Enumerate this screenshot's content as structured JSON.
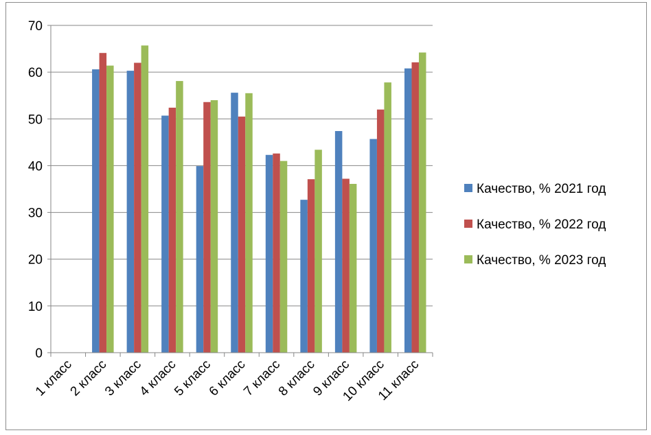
{
  "chart_data": {
    "type": "bar",
    "title": "",
    "xlabel": "",
    "ylabel": "",
    "ylim": [
      0,
      70
    ],
    "yticks": [
      "0",
      "10",
      "20",
      "30",
      "40",
      "50",
      "60",
      "70"
    ],
    "grid": "horizontal",
    "legend_position": "right",
    "categories": [
      "1 класс",
      "2 класс",
      "3 класс",
      "4 класс",
      "5 класс",
      "6 класс",
      "7 класс",
      "8 класс",
      "9 класс",
      "10 класс",
      "11 класс"
    ],
    "series": [
      {
        "name": "Качество, % 2021 год",
        "color": "#4F81BD",
        "values": [
          null,
          60.6,
          60.3,
          50.7,
          39.9,
          55.6,
          42.3,
          32.7,
          47.4,
          45.7,
          60.8
        ]
      },
      {
        "name": "Качество, % 2022 год",
        "color": "#C0504D",
        "values": [
          null,
          64.1,
          62.0,
          52.4,
          53.6,
          50.5,
          42.6,
          37.1,
          37.2,
          52.0,
          62.1
        ]
      },
      {
        "name": "Качество, % 2023 год",
        "color": "#9BBB59",
        "values": [
          null,
          61.4,
          65.7,
          58.1,
          54.0,
          55.5,
          41.0,
          43.4,
          36.1,
          57.8,
          64.2
        ]
      }
    ]
  }
}
